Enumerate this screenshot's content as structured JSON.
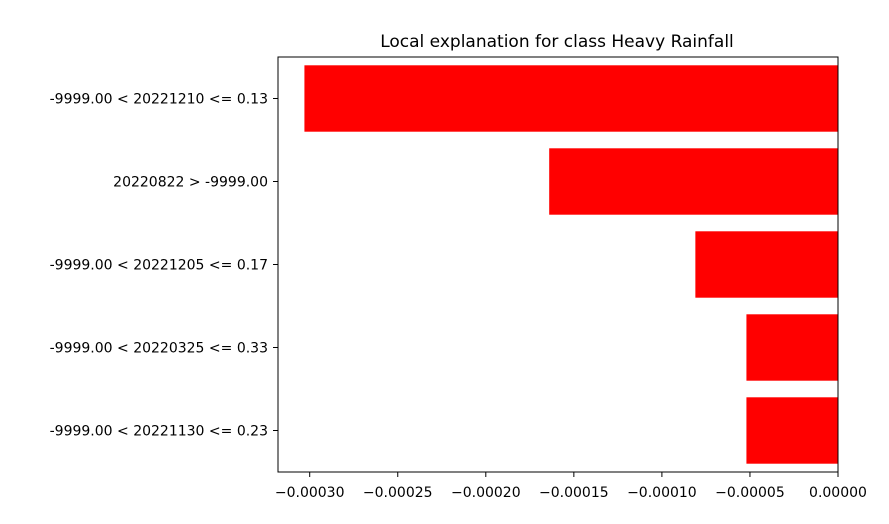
{
  "chart_data": {
    "type": "bar",
    "orientation": "horizontal",
    "title": "Local explanation for class Heavy Rainfall",
    "xlabel": "",
    "ylabel": "",
    "categories": [
      "-9999.00 < 20221210 <= 0.13",
      "20220822 > -9999.00",
      "-9999.00 < 20221205 <= 0.17",
      "-9999.00 < 20220325 <= 0.33",
      "-9999.00 < 20221130 <= 0.23"
    ],
    "values": [
      -0.000303,
      -0.000164,
      -8.1e-05,
      -5.2e-05,
      -5.2e-05
    ],
    "xlim": [
      -0.000318,
      0.0
    ],
    "xticks": [
      -0.0003,
      -0.00025,
      -0.0002,
      -0.00015,
      -0.0001,
      -5e-05,
      0.0
    ],
    "xtick_labels": [
      "−0.00030",
      "−0.00025",
      "−0.00020",
      "−0.00015",
      "−0.00010",
      "−0.00005",
      "0.00000"
    ],
    "bar_color": "#ff0000",
    "grid": false
  }
}
